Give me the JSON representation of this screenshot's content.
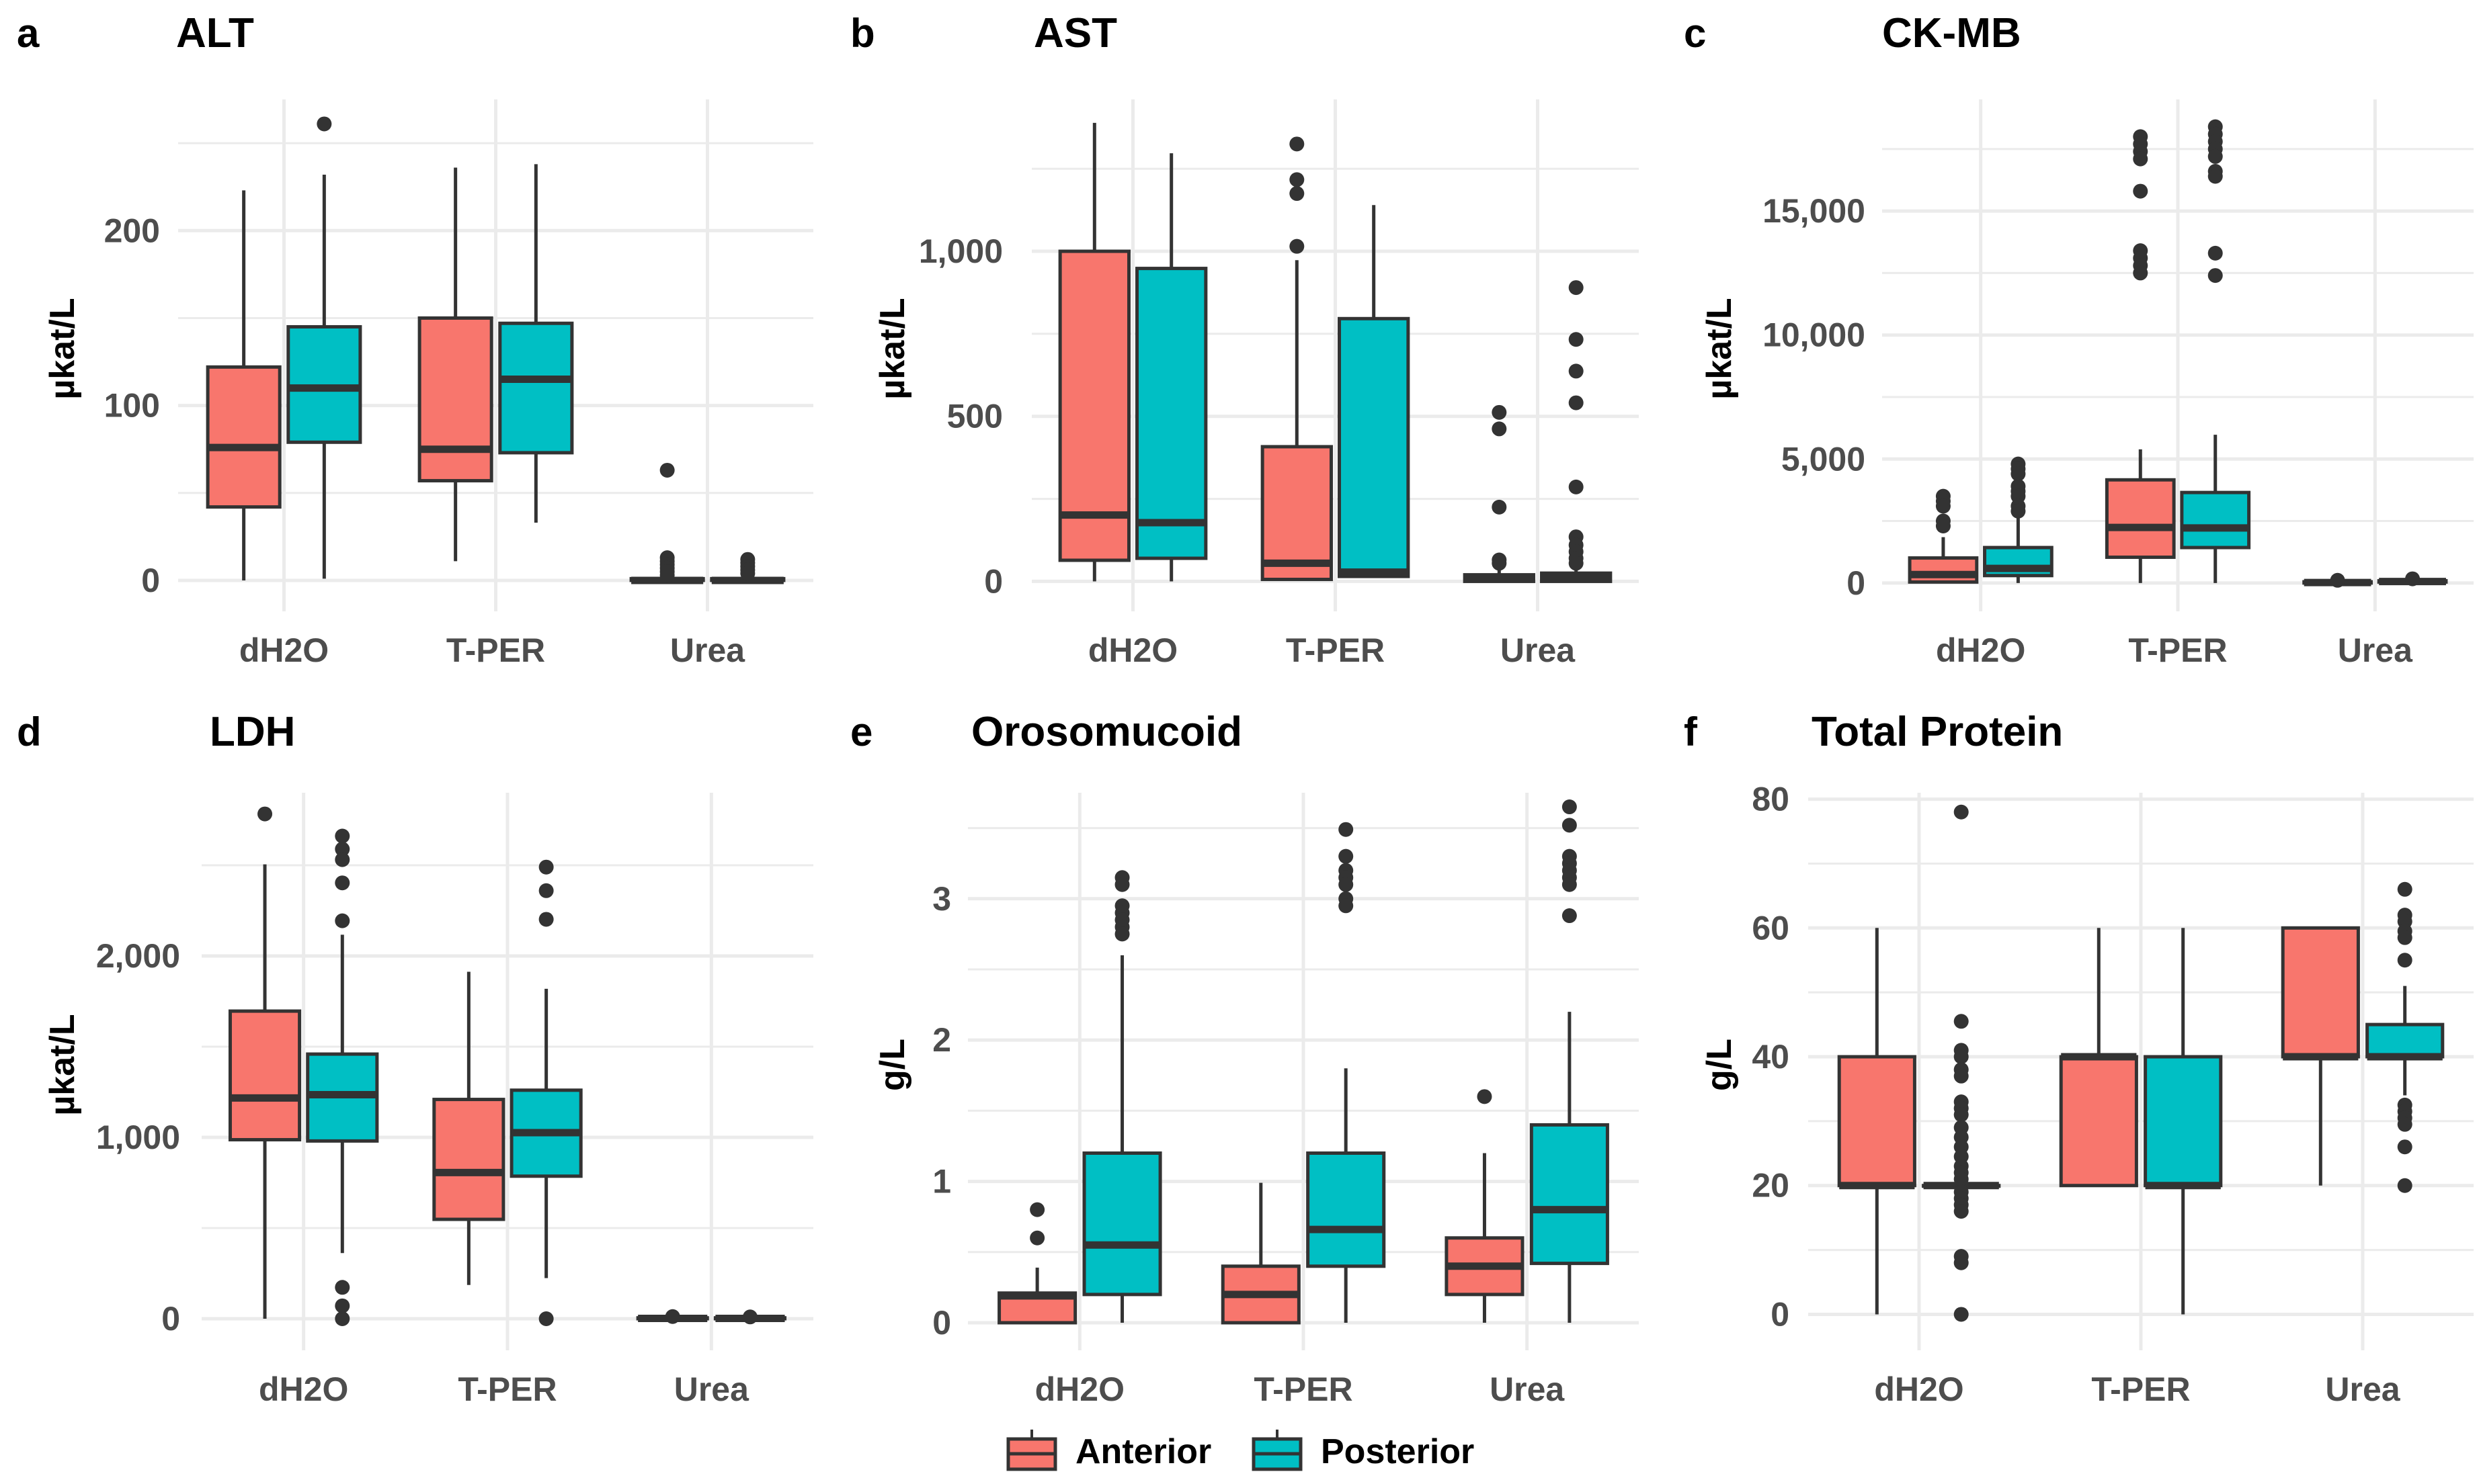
{
  "legend": {
    "items": [
      {
        "label": "Anterior",
        "color": "#F8766D"
      },
      {
        "label": "Posterior",
        "color": "#00BFC4"
      }
    ],
    "position": "bottom-center"
  },
  "chart_data": [
    {
      "type": "box",
      "letter": "a",
      "title": "ALT",
      "ylabel": "µkat/L",
      "xlabel": "",
      "categories": [
        "dH2O",
        "T-PER",
        "Urea"
      ],
      "ylim": [
        -10,
        275
      ],
      "yticks": [
        0,
        100,
        200
      ],
      "ytick_labels": [
        "0",
        "100",
        "200"
      ],
      "minor_yticks": [
        50,
        150,
        250
      ],
      "grid": true,
      "series": [
        {
          "name": "Anterior",
          "boxes": [
            {
              "category": "dH2O",
              "whisker_low": 0,
              "q1": 42,
              "median": 76,
              "q3": 122,
              "whisker_high": 223,
              "outliers": []
            },
            {
              "category": "T-PER",
              "whisker_low": 11,
              "q1": 57,
              "median": 75,
              "q3": 150,
              "whisker_high": 236,
              "outliers": []
            },
            {
              "category": "Urea",
              "whisker_low": 0,
              "q1": 0,
              "median": 0,
              "q3": 1,
              "whisker_high": 2,
              "outliers": [
                63,
                13,
                11,
                9,
                7,
                5,
                3
              ]
            }
          ]
        },
        {
          "name": "Posterior",
          "boxes": [
            {
              "category": "dH2O",
              "whisker_low": 1,
              "q1": 79,
              "median": 110,
              "q3": 145,
              "whisker_high": 232,
              "outliers": [
                261
              ]
            },
            {
              "category": "T-PER",
              "whisker_low": 33,
              "q1": 73,
              "median": 115,
              "q3": 147,
              "whisker_high": 238,
              "outliers": []
            },
            {
              "category": "Urea",
              "whisker_low": 0,
              "q1": 0,
              "median": 0,
              "q3": 1,
              "whisker_high": 2,
              "outliers": [
                12,
                10,
                8,
                6,
                4
              ]
            }
          ]
        }
      ]
    },
    {
      "type": "box",
      "letter": "b",
      "title": "AST",
      "ylabel": "µkat/L",
      "xlabel": "",
      "categories": [
        "dH2O",
        "T-PER",
        "Urea"
      ],
      "ylim": [
        -50,
        1460
      ],
      "yticks": [
        0,
        500,
        1000
      ],
      "ytick_labels": [
        "0",
        "500",
        "1,000"
      ],
      "minor_yticks": [
        250,
        750,
        1250
      ],
      "grid": true,
      "series": [
        {
          "name": "Anterior",
          "boxes": [
            {
              "category": "dH2O",
              "whisker_low": 0,
              "q1": 64,
              "median": 201,
              "q3": 1000,
              "whisker_high": 1389,
              "outliers": []
            },
            {
              "category": "T-PER",
              "whisker_low": 6,
              "q1": 6,
              "median": 55,
              "q3": 408,
              "whisker_high": 973,
              "outliers": [
                1325,
                1217,
                1175,
                1015
              ]
            },
            {
              "category": "Urea",
              "whisker_low": 0,
              "q1": 0,
              "median": 10,
              "q3": 20,
              "whisker_high": 45,
              "outliers": [
                512,
                462,
                225,
                65,
                55
              ]
            }
          ]
        },
        {
          "name": "Posterior",
          "boxes": [
            {
              "category": "dH2O",
              "whisker_low": 0,
              "q1": 70,
              "median": 178,
              "q3": 948,
              "whisker_high": 1297,
              "outliers": []
            },
            {
              "category": "T-PER",
              "whisker_low": 15,
              "q1": 15,
              "median": 28,
              "q3": 796,
              "whisker_high": 1140,
              "outliers": []
            },
            {
              "category": "Urea",
              "whisker_low": 0,
              "q1": 0,
              "median": 15,
              "q3": 25,
              "whisker_high": 45,
              "outliers": [
                890,
                733,
                637,
                541,
                286,
                135,
                110,
                90,
                70,
                55
              ]
            }
          ]
        }
      ]
    },
    {
      "type": "box",
      "letter": "c",
      "title": "CK-MB",
      "ylabel": "µkat/L",
      "xlabel": "",
      "categories": [
        "dH2O",
        "T-PER",
        "Urea"
      ],
      "ylim": [
        -600,
        19500
      ],
      "yticks": [
        0,
        5000,
        10000,
        15000
      ],
      "ytick_labels": [
        "0",
        "5,000",
        "10,000",
        "15,000"
      ],
      "minor_yticks": [
        2500,
        7500,
        12500,
        17500
      ],
      "grid": true,
      "series": [
        {
          "name": "Anterior",
          "boxes": [
            {
              "category": "dH2O",
              "whisker_low": 0,
              "q1": 40,
              "median": 340,
              "q3": 1010,
              "whisker_high": 1850,
              "outliers": [
                3500,
                3300,
                3100,
                2500,
                2300
              ]
            },
            {
              "category": "T-PER",
              "whisker_low": 0,
              "q1": 1040,
              "median": 2240,
              "q3": 4160,
              "whisker_high": 5390,
              "outliers": [
                18000,
                17700,
                17400,
                17100,
                15800,
                13400,
                13100,
                12800,
                12500
              ]
            },
            {
              "category": "Urea",
              "whisker_low": 0,
              "q1": 0,
              "median": 20,
              "q3": 50,
              "whisker_high": 80,
              "outliers": [
                110
              ]
            }
          ]
        },
        {
          "name": "Posterior",
          "boxes": [
            {
              "category": "dH2O",
              "whisker_low": 0,
              "q1": 300,
              "median": 590,
              "q3": 1430,
              "whisker_high": 2700,
              "outliers": [
                4800,
                4600,
                4400,
                3900,
                3700,
                3500,
                3100,
                2900
              ]
            },
            {
              "category": "T-PER",
              "whisker_low": 0,
              "q1": 1430,
              "median": 2220,
              "q3": 3650,
              "whisker_high": 5980,
              "outliers": [
                18400,
                18100,
                17800,
                17500,
                17200,
                16600,
                16400,
                13300,
                12400
              ]
            },
            {
              "category": "Urea",
              "whisker_low": 20,
              "q1": 40,
              "median": 60,
              "q3": 90,
              "whisker_high": 120,
              "outliers": [
                170
              ]
            }
          ]
        }
      ]
    },
    {
      "type": "box",
      "letter": "d",
      "title": "LDH",
      "ylabel": "µkat/L",
      "xlabel": "",
      "categories": [
        "dH2O",
        "T-PER",
        "Urea"
      ],
      "ylim": [
        -100,
        2900
      ],
      "yticks": [
        0,
        1000,
        2000
      ],
      "ytick_labels": [
        "0",
        "1,000",
        "2,000"
      ],
      "minor_yticks": [
        500,
        1500,
        2500
      ],
      "grid": true,
      "series": [
        {
          "name": "Anterior",
          "boxes": [
            {
              "category": "dH2O",
              "whisker_low": 0,
              "q1": 987,
              "median": 1217,
              "q3": 1696,
              "whisker_high": 2505,
              "outliers": [
                2783
              ]
            },
            {
              "category": "T-PER",
              "whisker_low": 186,
              "q1": 548,
              "median": 806,
              "q3": 1209,
              "whisker_high": 1913,
              "outliers": []
            },
            {
              "category": "Urea",
              "whisker_low": 0,
              "q1": 0,
              "median": 2,
              "q3": 5,
              "whisker_high": 8,
              "outliers": [
                12
              ]
            }
          ]
        },
        {
          "name": "Posterior",
          "boxes": [
            {
              "category": "dH2O",
              "whisker_low": 362,
              "q1": 980,
              "median": 1235,
              "q3": 1459,
              "whisker_high": 2117,
              "outliers": [
                2661,
                2589,
                2531,
                2403,
                2194,
                173,
                71,
                0
              ]
            },
            {
              "category": "T-PER",
              "whisker_low": 224,
              "q1": 786,
              "median": 1026,
              "q3": 1260,
              "whisker_high": 1819,
              "outliers": [
                2490,
                2360,
                2202,
                0
              ]
            },
            {
              "category": "Urea",
              "whisker_low": 0,
              "q1": 0,
              "median": 2,
              "q3": 5,
              "whisker_high": 8,
              "outliers": [
                10
              ]
            }
          ]
        }
      ]
    },
    {
      "type": "box",
      "letter": "e",
      "title": "Orosomucoid",
      "ylabel": "g/L",
      "xlabel": "",
      "categories": [
        "dH2O",
        "T-PER",
        "Urea"
      ],
      "ylim": [
        -0.1,
        3.75
      ],
      "yticks": [
        0,
        1,
        2,
        3
      ],
      "ytick_labels": [
        "0",
        "1",
        "2",
        "3"
      ],
      "minor_yticks": [
        0.5,
        1.5,
        2.5,
        3.5
      ],
      "grid": true,
      "series": [
        {
          "name": "Anterior",
          "boxes": [
            {
              "category": "dH2O",
              "whisker_low": 0,
              "q1": 0,
              "median": 0.19,
              "q3": 0.21,
              "whisker_high": 0.39,
              "outliers": [
                0.8,
                0.6
              ]
            },
            {
              "category": "T-PER",
              "whisker_low": 0,
              "q1": 0,
              "median": 0.2,
              "q3": 0.4,
              "whisker_high": 0.99,
              "outliers": []
            },
            {
              "category": "Urea",
              "whisker_low": 0,
              "q1": 0.2,
              "median": 0.4,
              "q3": 0.6,
              "whisker_high": 1.2,
              "outliers": [
                1.6
              ]
            }
          ]
        },
        {
          "name": "Posterior",
          "boxes": [
            {
              "category": "dH2O",
              "whisker_low": 0,
              "q1": 0.2,
              "median": 0.55,
              "q3": 1.2,
              "whisker_high": 2.6,
              "outliers": [
                3.15,
                3.1,
                2.95,
                2.9,
                2.85,
                2.8,
                2.75
              ]
            },
            {
              "category": "T-PER",
              "whisker_low": 0,
              "q1": 0.4,
              "median": 0.66,
              "q3": 1.2,
              "whisker_high": 1.8,
              "outliers": [
                3.49,
                3.3,
                3.2,
                3.15,
                3.1,
                3.0,
                2.95
              ]
            },
            {
              "category": "Urea",
              "whisker_low": 0,
              "q1": 0.42,
              "median": 0.8,
              "q3": 1.4,
              "whisker_high": 2.2,
              "outliers": [
                3.65,
                3.52,
                3.3,
                3.25,
                3.2,
                3.15,
                3.1,
                2.88
              ]
            }
          ]
        }
      ]
    },
    {
      "type": "box",
      "letter": "f",
      "title": "Total Protein",
      "ylabel": "g/L",
      "xlabel": "",
      "categories": [
        "dH2O",
        "T-PER",
        "Urea"
      ],
      "ylim": [
        -3.5,
        81
      ],
      "yticks": [
        0,
        20,
        40,
        60,
        80
      ],
      "ytick_labels": [
        "0",
        "20",
        "40",
        "60",
        "80"
      ],
      "minor_yticks": [
        10,
        30,
        50,
        70
      ],
      "grid": true,
      "series": [
        {
          "name": "Anterior",
          "boxes": [
            {
              "category": "dH2O",
              "whisker_low": 0,
              "q1": 20,
              "median": 20,
              "q3": 40,
              "whisker_high": 60,
              "outliers": []
            },
            {
              "category": "T-PER",
              "whisker_low": 20,
              "q1": 20,
              "median": 40,
              "q3": 40,
              "whisker_high": 60,
              "outliers": []
            },
            {
              "category": "Urea",
              "whisker_low": 20,
              "q1": 40,
              "median": 40,
              "q3": 60,
              "whisker_high": 60,
              "outliers": []
            }
          ]
        },
        {
          "name": "Posterior",
          "boxes": [
            {
              "category": "dH2O",
              "whisker_low": 20,
              "q1": 20,
              "median": 20,
              "q3": 20,
              "whisker_high": 20,
              "outliers": [
                78,
                45.5,
                41,
                40,
                38,
                37,
                33,
                32,
                31,
                29,
                27.5,
                26,
                24.5,
                23,
                22,
                21,
                19,
                18,
                17,
                16,
                9,
                8,
                0
              ]
            },
            {
              "category": "T-PER",
              "whisker_low": 0,
              "q1": 20,
              "median": 20,
              "q3": 40,
              "whisker_high": 60,
              "outliers": []
            },
            {
              "category": "Urea",
              "whisker_low": 34,
              "q1": 40,
              "median": 40,
              "q3": 45,
              "whisker_high": 51,
              "outliers": [
                66,
                62,
                61,
                59.5,
                58.5,
                55,
                32.5,
                31.5,
                30.5,
                29.5,
                26,
                20
              ]
            }
          ]
        }
      ]
    }
  ]
}
